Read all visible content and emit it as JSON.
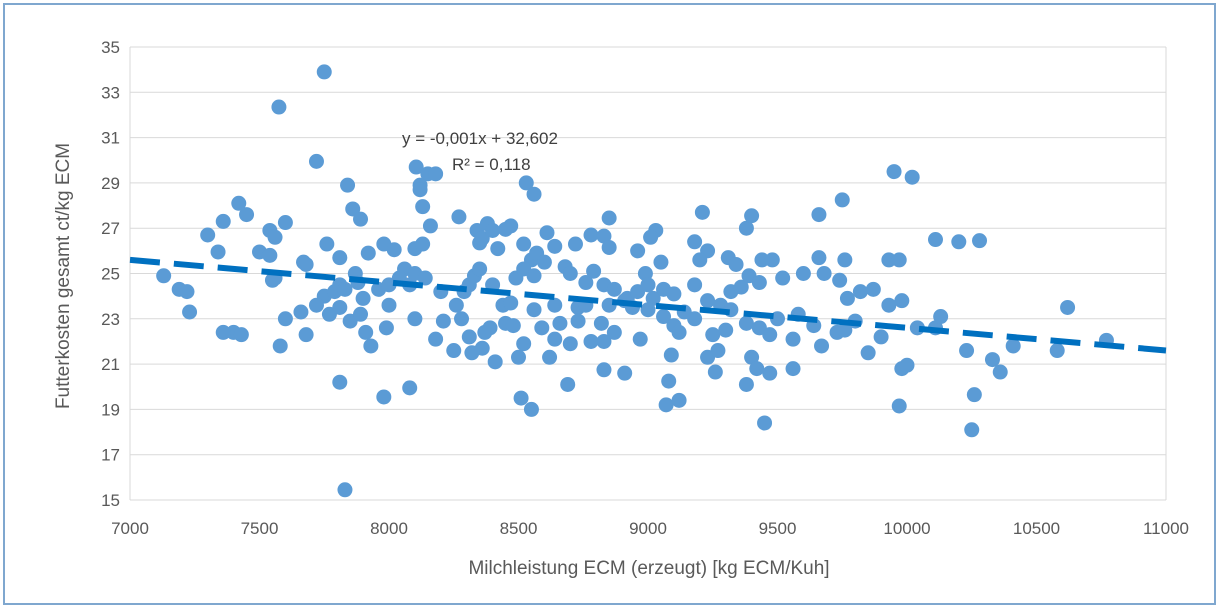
{
  "chart_data": {
    "type": "scatter",
    "title": "",
    "xlabel": "Milchleistung ECM (erzeugt)  [kg ECM/Kuh]",
    "ylabel": "Futterkosten gesamt ct/kg ECM",
    "xlim": [
      7000,
      11000
    ],
    "ylim": [
      15,
      35
    ],
    "x_ticks": [
      "7000",
      "7500",
      "8000",
      "8500",
      "9000",
      "9500",
      "10000",
      "10500",
      "11000"
    ],
    "y_ticks": [
      "15",
      "17",
      "19",
      "21",
      "23",
      "25",
      "27",
      "29",
      "31",
      "33",
      "35"
    ],
    "grid": "horizontal",
    "marker_color": "#5b9bd5",
    "trendline": {
      "color": "#0070c0",
      "slope": -0.001,
      "intercept": 32.602,
      "style": "dashed"
    },
    "annotations": {
      "equation": "y = -0,001x + 32,602",
      "r_squared": "R² = 0,118"
    },
    "points": [
      [
        7750,
        33.9
      ],
      [
        7575,
        32.35
      ],
      [
        7720,
        29.95
      ],
      [
        8105,
        29.7
      ],
      [
        8150,
        29.4
      ],
      [
        8180,
        29.4
      ],
      [
        8120,
        28.9
      ],
      [
        8120,
        28.7
      ],
      [
        7840,
        28.9
      ],
      [
        8530,
        29.0
      ],
      [
        8560,
        28.5
      ],
      [
        9950,
        29.5
      ],
      [
        10020,
        29.25
      ],
      [
        9750,
        28.25
      ],
      [
        7420,
        28.1
      ],
      [
        7450,
        27.6
      ],
      [
        7360,
        27.3
      ],
      [
        7600,
        27.25
      ],
      [
        7860,
        27.85
      ],
      [
        7890,
        27.4
      ],
      [
        8130,
        27.95
      ],
      [
        8160,
        27.1
      ],
      [
        8270,
        27.5
      ],
      [
        8380,
        27.2
      ],
      [
        8470,
        27.1
      ],
      [
        8850,
        27.45
      ],
      [
        9030,
        26.9
      ],
      [
        9210,
        27.7
      ],
      [
        9380,
        27.0
      ],
      [
        9400,
        27.55
      ],
      [
        9660,
        27.6
      ],
      [
        7300,
        26.7
      ],
      [
        7340,
        25.95
      ],
      [
        7540,
        26.9
      ],
      [
        7560,
        26.6
      ],
      [
        7760,
        26.3
      ],
      [
        7500,
        25.95
      ],
      [
        7540,
        25.8
      ],
      [
        7670,
        25.5
      ],
      [
        7810,
        25.7
      ],
      [
        7920,
        25.9
      ],
      [
        7980,
        26.3
      ],
      [
        8020,
        26.05
      ],
      [
        8060,
        25.2
      ],
      [
        8100,
        26.1
      ],
      [
        8130,
        26.3
      ],
      [
        8340,
        26.9
      ],
      [
        8350,
        26.35
      ],
      [
        8360,
        26.55
      ],
      [
        8400,
        26.9
      ],
      [
        8420,
        26.1
      ],
      [
        8450,
        26.95
      ],
      [
        8520,
        26.3
      ],
      [
        8550,
        25.6
      ],
      [
        8570,
        25.9
      ],
      [
        8610,
        26.8
      ],
      [
        8640,
        26.2
      ],
      [
        8720,
        26.3
      ],
      [
        8780,
        26.7
      ],
      [
        8830,
        26.65
      ],
      [
        8850,
        26.15
      ],
      [
        8960,
        26.0
      ],
      [
        9010,
        26.6
      ],
      [
        9050,
        25.5
      ],
      [
        9180,
        26.4
      ],
      [
        9230,
        26.0
      ],
      [
        9310,
        25.7
      ],
      [
        9340,
        25.4
      ],
      [
        9440,
        25.6
      ],
      [
        9480,
        25.6
      ],
      [
        9660,
        25.7
      ],
      [
        9760,
        25.6
      ],
      [
        9930,
        25.6
      ],
      [
        9970,
        25.6
      ],
      [
        10110,
        26.5
      ],
      [
        10200,
        26.4
      ],
      [
        10280,
        26.45
      ],
      [
        7130,
        24.9
      ],
      [
        7190,
        24.3
      ],
      [
        7220,
        24.2
      ],
      [
        7230,
        23.3
      ],
      [
        7550,
        24.7
      ],
      [
        7560,
        24.8
      ],
      [
        7680,
        25.4
      ],
      [
        7750,
        24.0
      ],
      [
        7790,
        24.2
      ],
      [
        7810,
        24.5
      ],
      [
        7830,
        24.3
      ],
      [
        7870,
        25.0
      ],
      [
        7880,
        24.6
      ],
      [
        7900,
        23.9
      ],
      [
        7960,
        24.3
      ],
      [
        8000,
        24.5
      ],
      [
        8040,
        24.8
      ],
      [
        8080,
        24.5
      ],
      [
        8100,
        25.0
      ],
      [
        8140,
        24.8
      ],
      [
        8200,
        24.2
      ],
      [
        8260,
        23.6
      ],
      [
        8290,
        24.2
      ],
      [
        8310,
        24.5
      ],
      [
        8330,
        24.9
      ],
      [
        8350,
        25.2
      ],
      [
        8400,
        24.5
      ],
      [
        8440,
        23.6
      ],
      [
        8470,
        23.7
      ],
      [
        8490,
        24.8
      ],
      [
        8520,
        25.2
      ],
      [
        8560,
        24.9
      ],
      [
        8600,
        25.5
      ],
      [
        8640,
        23.6
      ],
      [
        8680,
        25.3
      ],
      [
        8700,
        25.0
      ],
      [
        8730,
        23.5
      ],
      [
        8760,
        24.6
      ],
      [
        8790,
        25.1
      ],
      [
        8830,
        24.5
      ],
      [
        8870,
        24.3
      ],
      [
        8920,
        23.9
      ],
      [
        8960,
        24.2
      ],
      [
        8990,
        25.0
      ],
      [
        9000,
        24.5
      ],
      [
        9020,
        23.9
      ],
      [
        9060,
        24.3
      ],
      [
        9100,
        24.1
      ],
      [
        9180,
        24.5
      ],
      [
        9200,
        25.6
      ],
      [
        9230,
        23.8
      ],
      [
        9280,
        23.6
      ],
      [
        9320,
        24.2
      ],
      [
        9360,
        24.4
      ],
      [
        9390,
        24.9
      ],
      [
        9430,
        24.6
      ],
      [
        9520,
        24.8
      ],
      [
        9600,
        25.0
      ],
      [
        9680,
        25.0
      ],
      [
        9740,
        24.7
      ],
      [
        9770,
        23.9
      ],
      [
        9820,
        24.2
      ],
      [
        9870,
        24.3
      ],
      [
        9930,
        23.6
      ],
      [
        9980,
        23.8
      ],
      [
        7400,
        22.4
      ],
      [
        7430,
        22.3
      ],
      [
        7360,
        22.4
      ],
      [
        7580,
        21.8
      ],
      [
        7600,
        23.0
      ],
      [
        7660,
        23.3
      ],
      [
        7680,
        22.3
      ],
      [
        7720,
        23.6
      ],
      [
        7770,
        23.2
      ],
      [
        7810,
        23.5
      ],
      [
        7850,
        22.9
      ],
      [
        7890,
        23.2
      ],
      [
        7910,
        22.4
      ],
      [
        7930,
        21.8
      ],
      [
        7990,
        22.6
      ],
      [
        8000,
        23.6
      ],
      [
        8100,
        23.0
      ],
      [
        8180,
        22.1
      ],
      [
        8210,
        22.9
      ],
      [
        8250,
        21.6
      ],
      [
        8280,
        23.0
      ],
      [
        8310,
        22.2
      ],
      [
        8320,
        21.5
      ],
      [
        8360,
        21.7
      ],
      [
        8370,
        22.4
      ],
      [
        8390,
        22.6
      ],
      [
        8410,
        21.1
      ],
      [
        8450,
        22.8
      ],
      [
        8480,
        22.7
      ],
      [
        8500,
        21.3
      ],
      [
        8520,
        21.9
      ],
      [
        8560,
        23.4
      ],
      [
        8590,
        22.6
      ],
      [
        8620,
        21.3
      ],
      [
        8640,
        22.1
      ],
      [
        8660,
        22.8
      ],
      [
        8700,
        21.9
      ],
      [
        8730,
        22.9
      ],
      [
        8760,
        23.6
      ],
      [
        8780,
        22.0
      ],
      [
        8820,
        22.8
      ],
      [
        8830,
        22.0
      ],
      [
        8850,
        23.6
      ],
      [
        8870,
        22.4
      ],
      [
        8910,
        23.8
      ],
      [
        8940,
        23.5
      ],
      [
        8970,
        22.1
      ],
      [
        9000,
        23.4
      ],
      [
        9060,
        23.1
      ],
      [
        9100,
        22.7
      ],
      [
        9120,
        22.4
      ],
      [
        9140,
        23.3
      ],
      [
        9180,
        23.0
      ],
      [
        9230,
        21.3
      ],
      [
        9250,
        22.3
      ],
      [
        9270,
        21.6
      ],
      [
        9300,
        22.5
      ],
      [
        9320,
        23.4
      ],
      [
        9380,
        22.8
      ],
      [
        9400,
        21.3
      ],
      [
        9430,
        22.6
      ],
      [
        9470,
        22.3
      ],
      [
        9500,
        23.0
      ],
      [
        9560,
        22.1
      ],
      [
        9580,
        23.2
      ],
      [
        9640,
        22.7
      ],
      [
        9670,
        21.8
      ],
      [
        9730,
        22.4
      ],
      [
        9760,
        22.5
      ],
      [
        9800,
        22.9
      ],
      [
        9850,
        21.5
      ],
      [
        9900,
        22.2
      ],
      [
        10040,
        22.6
      ],
      [
        10110,
        22.6
      ],
      [
        10130,
        23.1
      ],
      [
        10230,
        21.6
      ],
      [
        10330,
        21.2
      ],
      [
        10410,
        21.8
      ],
      [
        10580,
        21.6
      ],
      [
        10620,
        23.5
      ],
      [
        10770,
        22.05
      ],
      [
        7810,
        20.2
      ],
      [
        7980,
        19.55
      ],
      [
        8080,
        19.95
      ],
      [
        8510,
        19.5
      ],
      [
        8550,
        19.0
      ],
      [
        8690,
        20.1
      ],
      [
        8830,
        20.75
      ],
      [
        8910,
        20.6
      ],
      [
        9070,
        19.2
      ],
      [
        9080,
        20.25
      ],
      [
        9090,
        21.4
      ],
      [
        9120,
        19.4
      ],
      [
        9260,
        20.65
      ],
      [
        9380,
        20.1
      ],
      [
        9420,
        20.8
      ],
      [
        9450,
        18.4
      ],
      [
        9470,
        20.6
      ],
      [
        9560,
        20.8
      ],
      [
        9970,
        19.15
      ],
      [
        9980,
        20.8
      ],
      [
        10000,
        20.95
      ],
      [
        10250,
        18.1
      ],
      [
        10260,
        19.65
      ],
      [
        10360,
        20.65
      ],
      [
        7830,
        15.45
      ]
    ]
  }
}
